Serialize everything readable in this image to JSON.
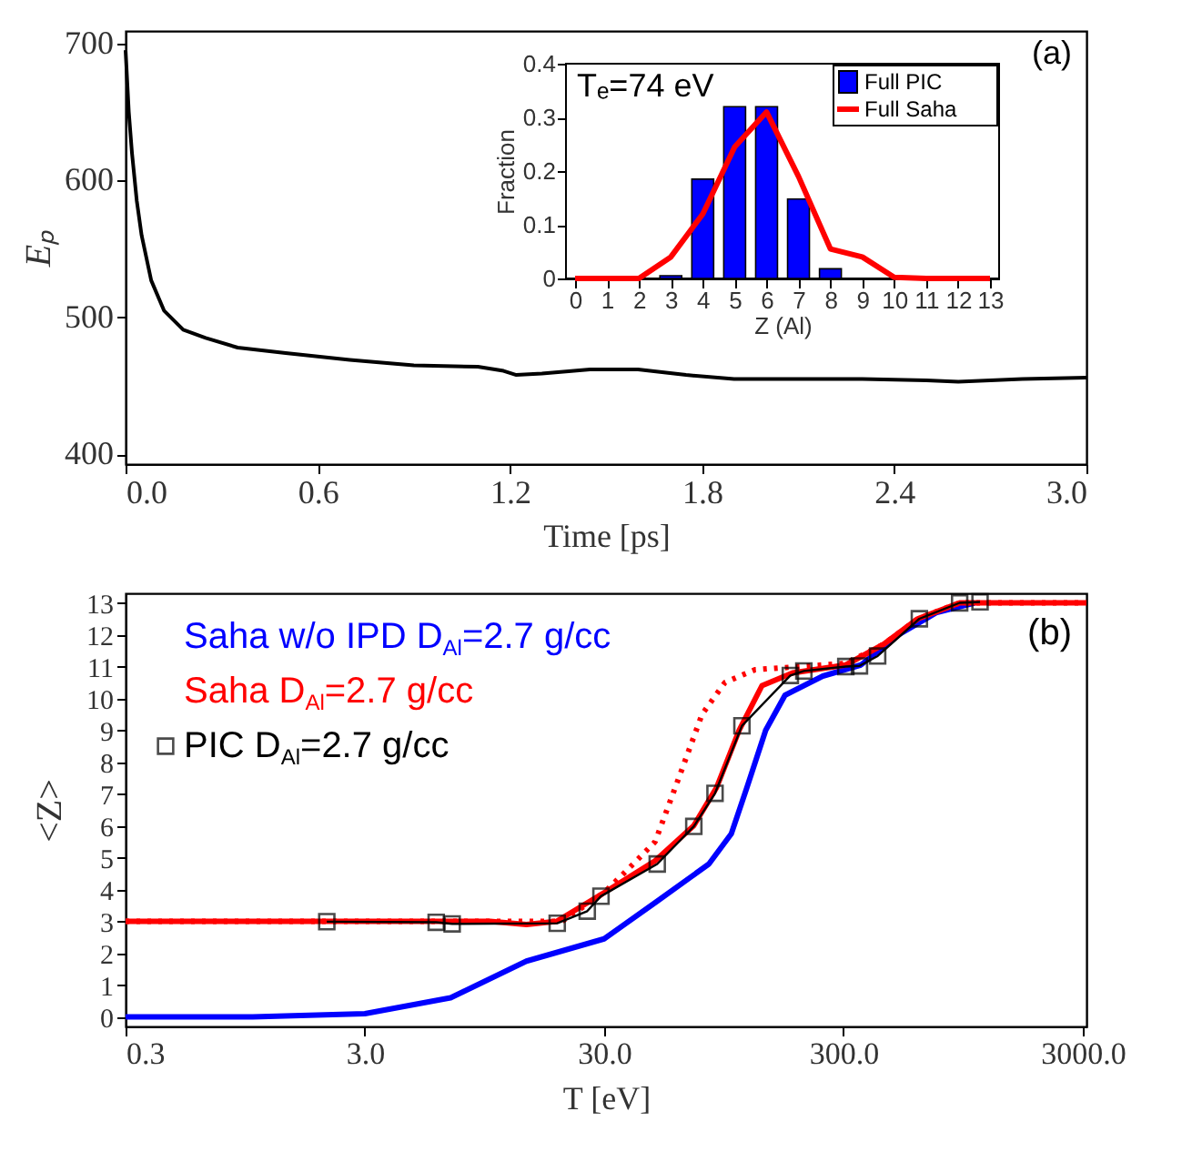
{
  "chart_data": [
    {
      "type": "line",
      "xlabel": "Time [ps]",
      "ylabel": "Eₚ",
      "annotations": [
        "(a)"
      ],
      "color": "#000000",
      "grid": false,
      "x": [
        0,
        0.01,
        0.02,
        0.035,
        0.05,
        0.08,
        0.12,
        0.18,
        0.25,
        0.35,
        0.5,
        0.7,
        0.9,
        1.1,
        1.18,
        1.22,
        1.3,
        1.45,
        1.6,
        1.75,
        1.9,
        2.1,
        2.3,
        2.5,
        2.6,
        2.8,
        3.0
      ],
      "values": [
        695,
        650,
        620,
        585,
        560,
        527,
        505,
        491,
        485,
        478,
        474,
        469,
        465,
        464,
        461,
        458,
        459,
        462,
        462,
        458,
        455,
        455,
        455,
        454,
        453,
        455,
        456
      ],
      "xlim": [
        0,
        3
      ],
      "ylim": [
        393,
        709
      ],
      "xticks": [
        {
          "value": 0,
          "label": "0.0"
        },
        0.6,
        1.2,
        1.8,
        2.4,
        {
          "value": 3,
          "label": "3.0"
        }
      ],
      "yticks": [
        400,
        500,
        600,
        700
      ]
    },
    {
      "type": "bar",
      "xlabel": "Z (Al)",
      "ylabel": "Fraction",
      "annotations": [
        "Tₑ=74 eV"
      ],
      "grid": false,
      "legend": "top right",
      "x": [
        0,
        1,
        2,
        3,
        4,
        5,
        6,
        7,
        8,
        9,
        10,
        11,
        12,
        13
      ],
      "series": [
        {
          "name": "Full PIC",
          "type": "bar",
          "color": "#0000ff",
          "values": [
            0,
            0,
            0,
            0.005,
            0.185,
            0.32,
            0.32,
            0.148,
            0.018,
            0,
            0,
            0,
            0,
            0
          ]
        },
        {
          "name": "Full Saha",
          "type": "line",
          "color": "#ff0000",
          "values": [
            0,
            0,
            0,
            0.04,
            0.12,
            0.245,
            0.31,
            0.19,
            0.055,
            0.04,
            0.002,
            0,
            0,
            0
          ]
        }
      ],
      "xlim": [
        0,
        13
      ],
      "ylim": [
        0,
        0.4
      ],
      "xticks": [
        0,
        1,
        2,
        3,
        4,
        5,
        6,
        7,
        8,
        9,
        10,
        11,
        12,
        13
      ],
      "yticks": [
        0,
        0.1,
        0.2,
        0.3,
        0.4
      ]
    },
    {
      "type": "line",
      "xlabel": "T [eV]",
      "ylabel": "<Z>",
      "annotations": [
        "(b)"
      ],
      "grid": false,
      "legend": "top left",
      "log": "x",
      "series": [
        {
          "name": "Saha w/o IPD D$_{Al}$=2.7 g/cc",
          "color": "#0000ff",
          "x": [
            0.3,
            1.02,
            3.0,
            6.85,
            14.2,
            30,
            49.3,
            82.2,
            102,
            118.5,
            142,
            171,
            246,
            355,
            511,
            737,
            1062
          ],
          "values": [
            0,
            0,
            0.1,
            0.6,
            1.75,
            2.45,
            3.6,
            4.8,
            5.75,
            7.2,
            9.0,
            10.1,
            10.7,
            11.05,
            12.0,
            12.7,
            13
          ]
        },
        {
          "name": "Saha D$_{Al}$=2.7 g/cc",
          "color": "#ff0000",
          "x": [
            0.3,
            3.0,
            10,
            14.2,
            19,
            30,
            49,
            71,
            88.5,
            110,
            137,
            184,
            307,
            442,
            614,
            918,
            3110
          ],
          "values": [
            3.0,
            3.0,
            3.0,
            2.9,
            3.0,
            3.9,
            4.9,
            6.0,
            7.2,
            9.0,
            10.4,
            10.8,
            11.05,
            11.7,
            12.5,
            13.0,
            13.0
          ]
        },
        {
          "color": "#ff0000",
          "line_style": "dotted",
          "x": [
            0.3,
            3.0,
            14.2,
            20,
            30,
            39.7,
            49,
            61.5,
            77,
            96,
            128,
            197,
            307,
            442,
            614,
            918,
            3110
          ],
          "values": [
            3.0,
            3.0,
            3.0,
            3.0,
            3.9,
            4.8,
            5.5,
            7.5,
            9.5,
            10.5,
            10.9,
            11.0,
            11.1,
            11.7,
            12.5,
            13.0,
            13.0
          ]
        },
        {
          "name": "PIC D$_{Al}$=2.7 g/cc",
          "color": "#000000",
          "marker": "square",
          "x": [
            2.08,
            5.96,
            6.95,
            19.1,
            25.5,
            29.1,
            50.0,
            71.1,
            87.2,
            113,
            180,
            205,
            307,
            350,
            417,
            623,
            918,
            1117
          ],
          "values": [
            2.99,
            2.97,
            2.92,
            2.94,
            3.32,
            3.79,
            4.8,
            5.98,
            7.02,
            9.14,
            10.72,
            10.86,
            11.0,
            11.02,
            11.33,
            12.5,
            13.0,
            13.03
          ]
        }
      ],
      "xlim": [
        0.3,
        3110
      ],
      "ylim": [
        -0.3,
        13.3
      ],
      "xticks": [
        0.3,
        {
          "value": 3,
          "label": "3.0"
        },
        {
          "value": 30,
          "label": "30.0"
        },
        {
          "value": 300,
          "label": "300.0"
        },
        {
          "value": 3000,
          "label": "3000.0"
        }
      ],
      "yticks": [
        0,
        1,
        2,
        3,
        4,
        5,
        6,
        7,
        8,
        9,
        10,
        11,
        12,
        13
      ]
    }
  ]
}
